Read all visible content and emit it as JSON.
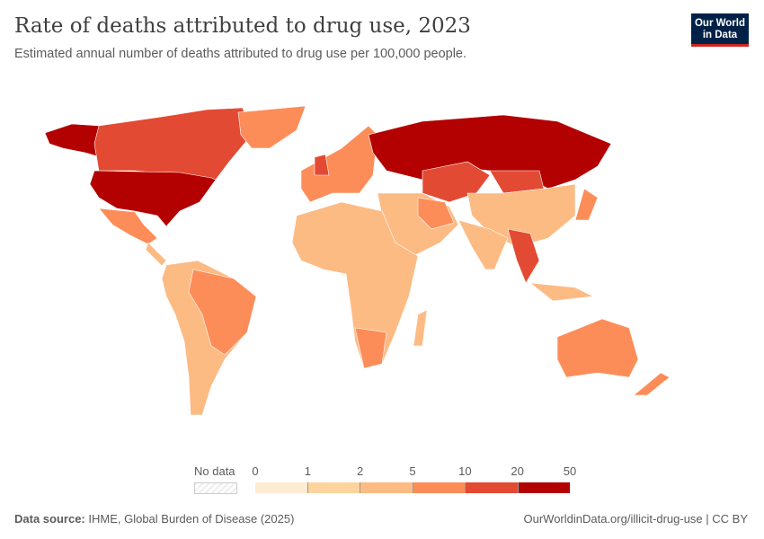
{
  "header": {
    "title": "Rate of deaths attributed to drug use, 2023",
    "subtitle": "Estimated annual number of deaths attributed to drug use per 100,000 people.",
    "logo_line1": "Our World",
    "logo_line2": "in Data"
  },
  "legend": {
    "no_data_label": "No data",
    "ticks": [
      "0",
      "1",
      "2",
      "5",
      "10",
      "20",
      "50"
    ],
    "bins": [
      {
        "range": "0–1",
        "color": "#fdebd2"
      },
      {
        "range": "1–2",
        "color": "#fdd49e"
      },
      {
        "range": "2–5",
        "color": "#fdbb84"
      },
      {
        "range": "5–10",
        "color": "#fc8d59"
      },
      {
        "range": "10–20",
        "color": "#e34a33"
      },
      {
        "range": "20–50",
        "color": "#b30000"
      }
    ]
  },
  "footer": {
    "source_label": "Data source:",
    "source": "IHME, Global Burden of Disease (2025)",
    "url": "OurWorldinData.org/illicit-drug-use",
    "license": "CC BY"
  }
}
